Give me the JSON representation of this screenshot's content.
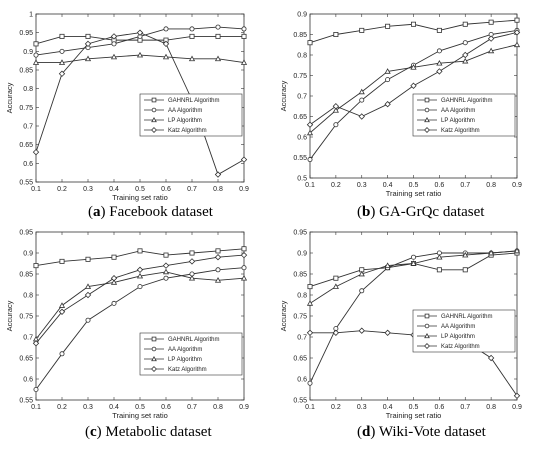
{
  "chart_data": [
    {
      "type": "line",
      "caption_letter": "a",
      "caption_text": "Facebook dataset",
      "xlabel": "Training set ratio",
      "ylabel": "Accuracy",
      "x": [
        0.1,
        0.2,
        0.3,
        0.4,
        0.5,
        0.6,
        0.7,
        0.8,
        0.9
      ],
      "xlim": [
        0.1,
        0.9
      ],
      "ylim": [
        0.55,
        1.0
      ],
      "xticks": [
        "0.1",
        "0.2",
        "0.3",
        "0.4",
        "0.5",
        "0.6",
        "0.7",
        "0.8",
        "0.9"
      ],
      "yticks": [
        "0.55",
        "0.6",
        "0.65",
        "0.7",
        "0.75",
        "0.8",
        "0.85",
        "0.9",
        "0.95",
        "1"
      ],
      "legend_position": "center-right",
      "series": [
        {
          "name": "GAHNRL Algorithm",
          "marker": "square",
          "values": [
            0.92,
            0.94,
            0.94,
            0.93,
            0.93,
            0.93,
            0.94,
            0.94,
            0.94
          ]
        },
        {
          "name": "AA Algorithm",
          "marker": "circle",
          "values": [
            0.89,
            0.9,
            0.91,
            0.92,
            0.94,
            0.96,
            0.96,
            0.965,
            0.96
          ]
        },
        {
          "name": "LP Algorithm",
          "marker": "triangle",
          "values": [
            0.87,
            0.87,
            0.88,
            0.885,
            0.89,
            0.885,
            0.88,
            0.88,
            0.87
          ]
        },
        {
          "name": "Katz Algorithm",
          "marker": "diamond",
          "values": [
            0.63,
            0.84,
            0.92,
            0.94,
            0.95,
            0.92,
            0.77,
            0.57,
            0.61
          ]
        }
      ]
    },
    {
      "type": "line",
      "caption_letter": "b",
      "caption_text": "GA-GrQc dataset",
      "xlabel": "Training set ratio",
      "ylabel": "Accuracy",
      "x": [
        0.1,
        0.2,
        0.3,
        0.4,
        0.5,
        0.6,
        0.7,
        0.8,
        0.9
      ],
      "xlim": [
        0.1,
        0.9
      ],
      "ylim": [
        0.5,
        0.9
      ],
      "xticks": [
        "0.1",
        "0.2",
        "0.3",
        "0.4",
        "0.5",
        "0.6",
        "0.7",
        "0.8",
        "0.9"
      ],
      "yticks": [
        "0.5",
        "0.55",
        "0.6",
        "0.65",
        "0.7",
        "0.75",
        "0.8",
        "0.85",
        "0.9"
      ],
      "legend_position": "center-right",
      "series": [
        {
          "name": "GAHNRL Algorithm",
          "marker": "square",
          "values": [
            0.83,
            0.85,
            0.86,
            0.87,
            0.875,
            0.86,
            0.875,
            0.88,
            0.885
          ]
        },
        {
          "name": "AA Algorithm",
          "marker": "circle",
          "values": [
            0.545,
            0.63,
            0.69,
            0.74,
            0.775,
            0.81,
            0.83,
            0.85,
            0.86
          ]
        },
        {
          "name": "LP Algorithm",
          "marker": "triangle",
          "values": [
            0.61,
            0.665,
            0.71,
            0.76,
            0.77,
            0.78,
            0.785,
            0.81,
            0.825
          ]
        },
        {
          "name": "Katz Algorithm",
          "marker": "diamond",
          "values": [
            0.63,
            0.675,
            0.65,
            0.68,
            0.725,
            0.76,
            0.8,
            0.84,
            0.855
          ]
        }
      ]
    },
    {
      "type": "line",
      "caption_letter": "c",
      "caption_text": "Metabolic dataset",
      "xlabel": "Training set ratio",
      "ylabel": "Accuracy",
      "x": [
        0.1,
        0.2,
        0.3,
        0.4,
        0.5,
        0.6,
        0.7,
        0.8,
        0.9
      ],
      "xlim": [
        0.1,
        0.9
      ],
      "ylim": [
        0.55,
        0.95
      ],
      "xticks": [
        "0.1",
        "0.2",
        "0.3",
        "0.4",
        "0.5",
        "0.6",
        "0.7",
        "0.8",
        "0.9"
      ],
      "yticks": [
        "0.55",
        "0.6",
        "0.65",
        "0.7",
        "0.75",
        "0.8",
        "0.85",
        "0.9",
        "0.95"
      ],
      "legend_position": "bottom-right",
      "series": [
        {
          "name": "GAHNRL Algorithm",
          "marker": "square",
          "values": [
            0.87,
            0.88,
            0.885,
            0.89,
            0.905,
            0.895,
            0.9,
            0.905,
            0.91
          ]
        },
        {
          "name": "AA Algorithm",
          "marker": "circle",
          "values": [
            0.575,
            0.66,
            0.74,
            0.78,
            0.82,
            0.84,
            0.85,
            0.86,
            0.865
          ]
        },
        {
          "name": "LP Algorithm",
          "marker": "triangle",
          "values": [
            0.695,
            0.775,
            0.82,
            0.83,
            0.845,
            0.855,
            0.84,
            0.835,
            0.84
          ]
        },
        {
          "name": "Katz Algorithm",
          "marker": "diamond",
          "values": [
            0.685,
            0.76,
            0.8,
            0.84,
            0.86,
            0.87,
            0.88,
            0.89,
            0.895
          ]
        }
      ]
    },
    {
      "type": "line",
      "caption_letter": "d",
      "caption_text": "Wiki-Vote dataset",
      "xlabel": "Training set ratio",
      "ylabel": "Accuracy",
      "x": [
        0.1,
        0.2,
        0.3,
        0.4,
        0.5,
        0.6,
        0.7,
        0.8,
        0.9
      ],
      "xlim": [
        0.1,
        0.9
      ],
      "ylim": [
        0.55,
        0.95
      ],
      "xticks": [
        "0.1",
        "0.2",
        "0.3",
        "0.4",
        "0.5",
        "0.6",
        "0.7",
        "0.8",
        "0.9"
      ],
      "yticks": [
        "0.55",
        "0.6",
        "0.65",
        "0.7",
        "0.75",
        "0.8",
        "0.85",
        "0.9",
        "0.95"
      ],
      "legend_position": "center-right",
      "series": [
        {
          "name": "GAHNRL Algorithm",
          "marker": "square",
          "values": [
            0.82,
            0.84,
            0.86,
            0.865,
            0.875,
            0.86,
            0.86,
            0.895,
            0.9
          ]
        },
        {
          "name": "AA Algorithm",
          "marker": "circle",
          "values": [
            0.59,
            0.72,
            0.81,
            0.865,
            0.89,
            0.9,
            0.9,
            0.9,
            0.905
          ]
        },
        {
          "name": "LP Algorithm",
          "marker": "triangle",
          "values": [
            0.78,
            0.82,
            0.85,
            0.87,
            0.875,
            0.89,
            0.895,
            0.9,
            0.905
          ]
        },
        {
          "name": "Katz Algorithm",
          "marker": "diamond",
          "values": [
            0.71,
            0.71,
            0.715,
            0.71,
            0.705,
            0.7,
            0.69,
            0.65,
            0.56
          ]
        }
      ]
    }
  ]
}
